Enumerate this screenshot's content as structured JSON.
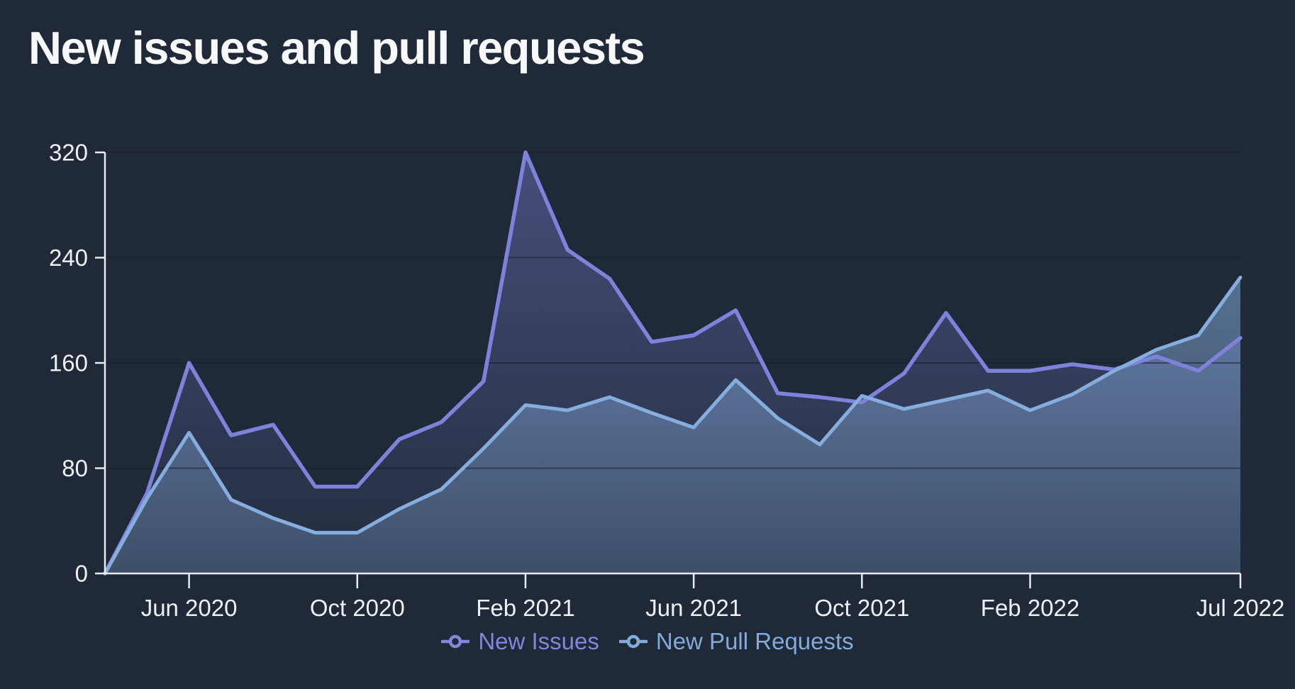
{
  "title": "New issues and pull requests",
  "colors": {
    "background": "#1f2937",
    "title_text": "#f7f8fa",
    "axis": "#e9ecf0",
    "tick_label": "#eef1f4",
    "gridline": "rgba(24,30,46,0.55)",
    "new_issues": "#7e82da",
    "new_pull_requests": "#85aede"
  },
  "legend": {
    "items": [
      {
        "label": "New Issues",
        "color": "#8486dc",
        "series": "New Issues"
      },
      {
        "label": "New Pull Requests",
        "color": "#82abdb",
        "series": "New Pull Requests"
      }
    ]
  },
  "chart_data": {
    "type": "area",
    "title": "New issues and pull requests",
    "xlabel": "",
    "ylabel": "",
    "x": [
      "Apr 2020",
      "May 2020",
      "Jun 2020",
      "Jul 2020",
      "Aug 2020",
      "Sep 2020",
      "Oct 2020",
      "Nov 2020",
      "Dec 2020",
      "Jan 2021",
      "Feb 2021",
      "Mar 2021",
      "Apr 2021",
      "May 2021",
      "Jun 2021",
      "Jul 2021",
      "Aug 2021",
      "Sep 2021",
      "Oct 2021",
      "Nov 2021",
      "Dec 2021",
      "Jan 2022",
      "Feb 2022",
      "Mar 2022",
      "Apr 2022",
      "May 2022",
      "Jun 2022",
      "Jul 2022"
    ],
    "series": [
      {
        "name": "New Issues",
        "color": "#7e82da",
        "fill_top": "rgba(126,130,218,0.42)",
        "fill_bottom": "rgba(126,130,218,0.04)",
        "stroke_width": 5.5,
        "values": [
          0,
          61,
          160,
          105,
          113,
          66,
          66,
          102,
          115,
          146,
          320,
          246,
          224,
          176,
          181,
          200,
          137,
          134,
          130,
          152,
          198,
          154,
          154,
          159,
          155,
          165,
          154,
          179
        ]
      },
      {
        "name": "New Pull Requests",
        "color": "#85aede",
        "fill_top": "rgba(136,177,226,0.52)",
        "fill_bottom": "rgba(136,177,226,0.26)",
        "stroke_width": 5,
        "values": [
          0,
          57,
          107,
          56,
          42,
          31,
          31,
          49,
          64,
          95,
          128,
          124,
          134,
          122,
          111,
          147,
          118,
          98,
          135,
          125,
          132,
          139,
          124,
          136,
          154,
          170,
          181,
          225
        ]
      }
    ],
    "ylim": [
      0,
      320
    ],
    "y_ticks": [
      0,
      80,
      160,
      240,
      320
    ],
    "y_tick_labels": [
      "0",
      "80",
      "160",
      "240",
      "320"
    ],
    "x_tick_labels": [
      "Jun 2020",
      "Oct 2020",
      "Feb 2021",
      "Jun 2021",
      "Oct 2021",
      "Feb 2022",
      "Jul 2022"
    ],
    "x_tick_indices": [
      2,
      6,
      10,
      14,
      18,
      22,
      27
    ],
    "grid": "horizontal",
    "legend_position": "bottom"
  }
}
